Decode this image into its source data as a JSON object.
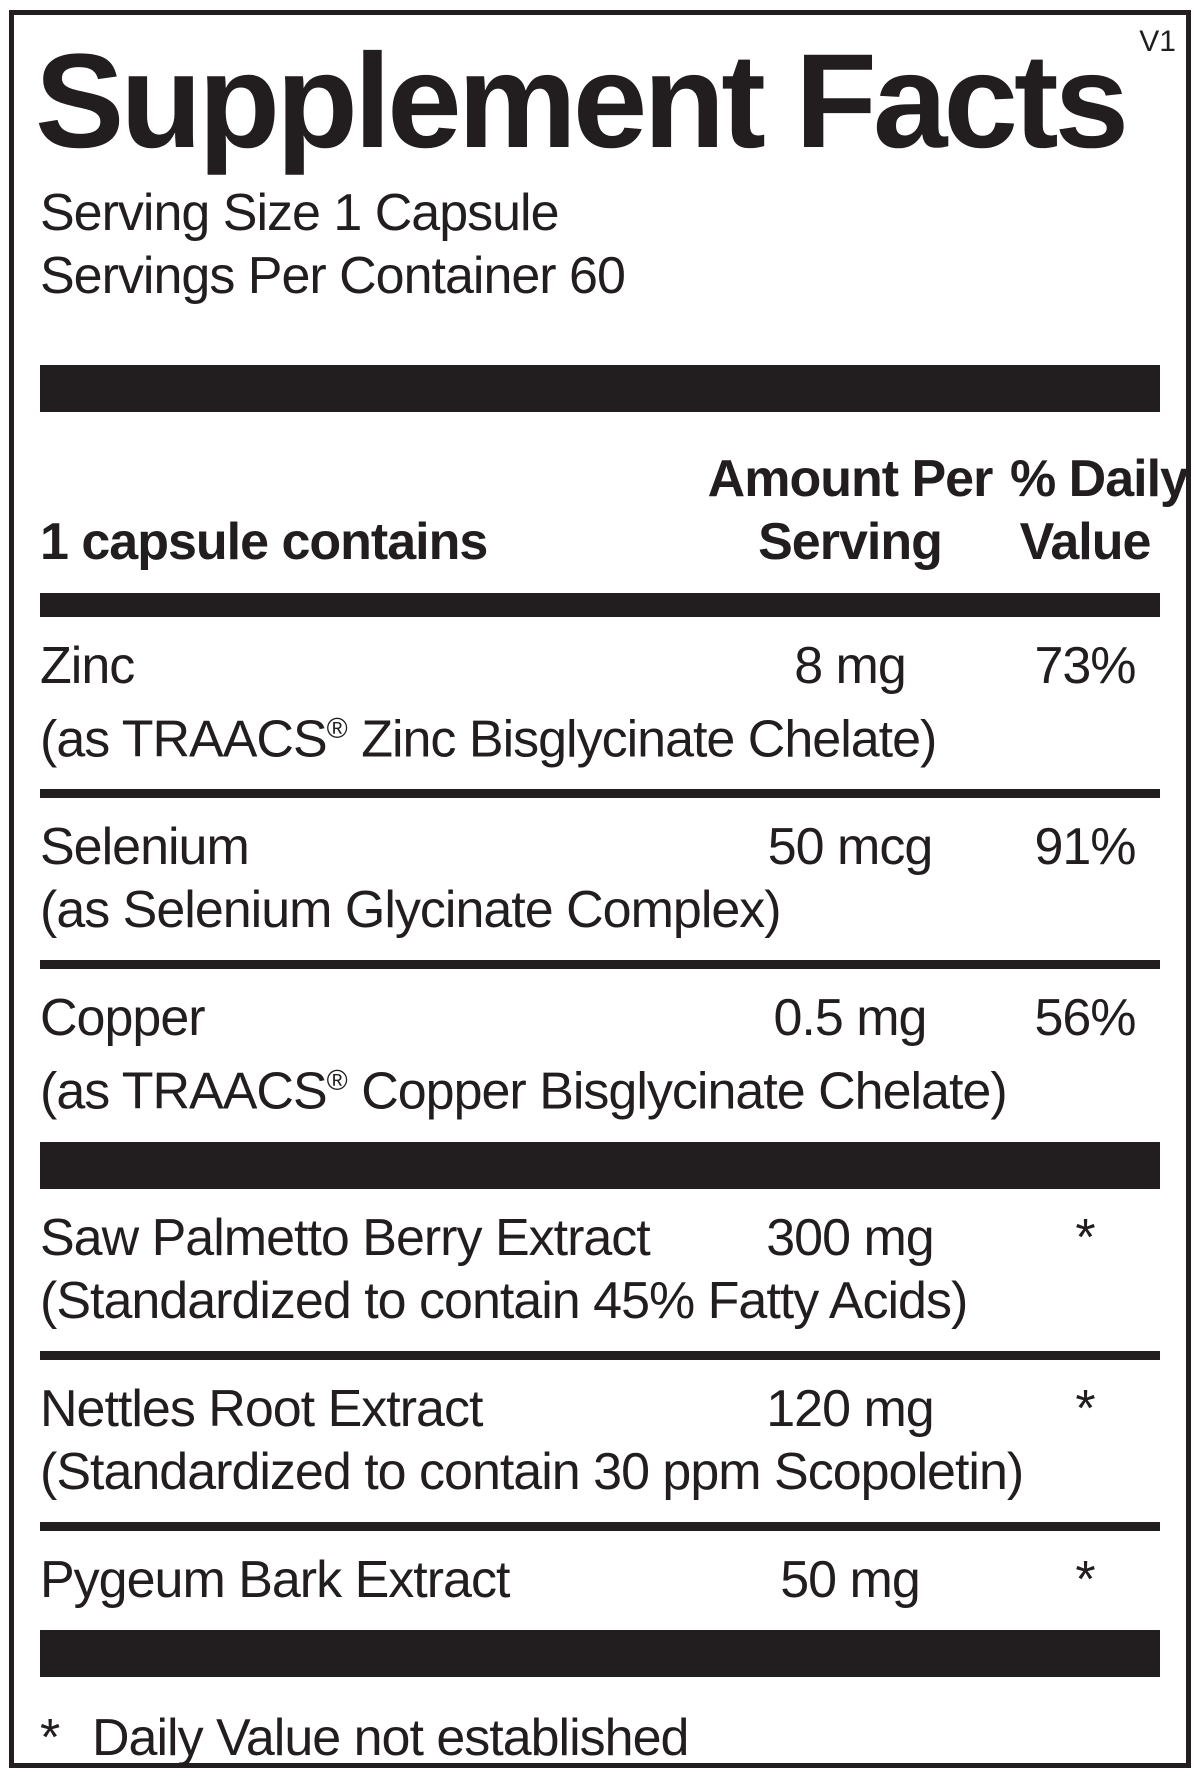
{
  "version": "V1",
  "title": "Supplement Facts",
  "serving_info": {
    "serving_size": "Serving Size 1 Capsule",
    "servings_per_container": "Servings Per Container 60"
  },
  "header": {
    "contains_label": "1 capsule contains",
    "amount_line1": "Amount Per",
    "amount_line2": "Serving",
    "dv_line1": "% Daily",
    "dv_line2": "Value"
  },
  "rows": [
    {
      "name": "Zinc",
      "sub": "(as TRAACS® Zinc Bisglycinate Chelate)",
      "amount": "8 mg",
      "dv": "73%",
      "divider_after": "thin"
    },
    {
      "name": "Selenium",
      "sub": "(as Selenium Glycinate Complex)",
      "amount": "50 mcg",
      "dv": "91%",
      "divider_after": "thin"
    },
    {
      "name": "Copper",
      "sub": "(as TRAACS® Copper Bisglycinate Chelate)",
      "amount": "0.5 mg",
      "dv": "56%",
      "divider_after": "thick"
    },
    {
      "name": "Saw Palmetto Berry Extract",
      "sub": "(Standardized to contain 45% Fatty Acids)",
      "amount": "300 mg",
      "dv": "*",
      "divider_after": "thin"
    },
    {
      "name": "Nettles Root Extract",
      "sub": "(Standardized to contain 30 ppm Scopoletin)",
      "amount": "120 mg",
      "dv": "*",
      "divider_after": "thin"
    },
    {
      "name": "Pygeum Bark Extract",
      "sub": null,
      "amount": "50 mg",
      "dv": "*",
      "divider_after": "thick"
    }
  ],
  "footnote": {
    "symbol": "*",
    "text": "Daily Value not established"
  },
  "colors": {
    "ink": "#221e1f",
    "background": "#ffffff"
  }
}
